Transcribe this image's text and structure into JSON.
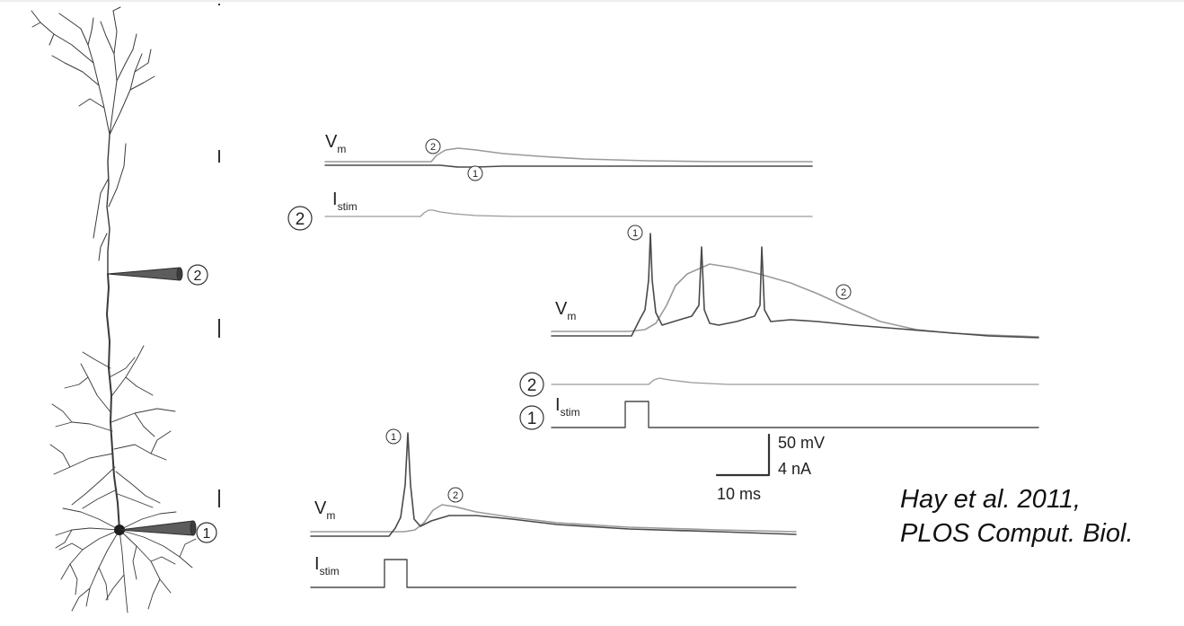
{
  "colors": {
    "trace_dark": "#4a4a4a",
    "trace_light": "#9a9a9a",
    "morphology": "#3a3a3a"
  },
  "neuron": {
    "electrode_1": "1",
    "electrode_2": "2"
  },
  "panel_top": {
    "vm_label": "V",
    "vm_sub": "m",
    "istim_label": "I",
    "istim_sub": "stim",
    "marker_1": "1",
    "marker_2": "2",
    "stim_marker": "2"
  },
  "panel_middle": {
    "vm_label": "V",
    "vm_sub": "m",
    "istim_label": "I",
    "istim_sub": "stim",
    "marker_1": "1",
    "marker_2": "2",
    "stim_marker_2": "2",
    "stim_marker_1": "1",
    "scale_voltage": "50 mV",
    "scale_current": "4 nA",
    "scale_time": "10 ms"
  },
  "panel_bottom": {
    "vm_label": "V",
    "vm_sub": "m",
    "istim_label": "I",
    "istim_sub": "stim",
    "marker_1": "1",
    "marker_2": "2"
  },
  "citation": {
    "line1": "Hay et al. 2011,",
    "line2": "PLOS Comput. Biol."
  }
}
